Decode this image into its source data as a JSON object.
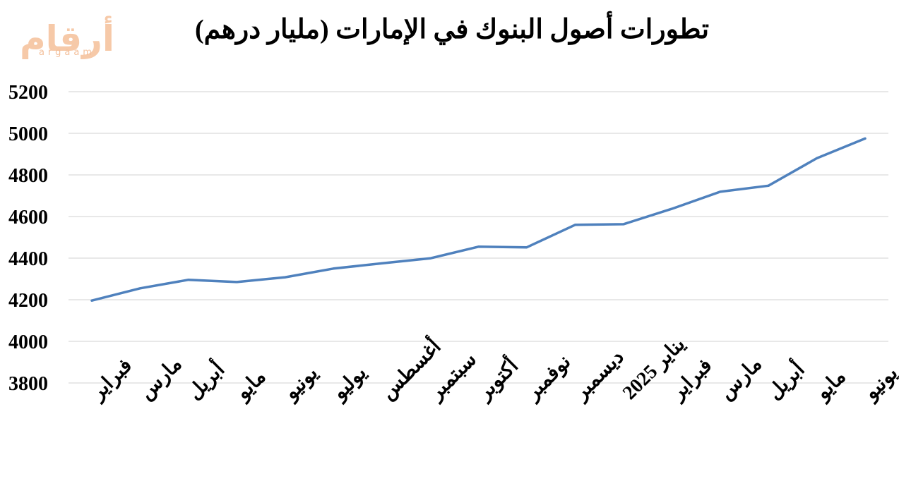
{
  "logo": {
    "arabic": "أرقام",
    "latin": "argaam"
  },
  "chart_data": {
    "type": "line",
    "title": "تطورات أصول البنوك في الإمارات (مليار درهم)",
    "xlabel": "",
    "ylabel": "",
    "categories": [
      "فبراير",
      "مارس",
      "أبريل",
      "مايو",
      "يونيو",
      "يوليو",
      "أغسطس",
      "سبتمبر",
      "أكتوبر",
      "نوفمبر",
      "ديسمبر",
      "يناير 2025",
      "فبراير",
      "مارس",
      "أبريل",
      "مايو",
      "يونيو"
    ],
    "series": [
      {
        "values": [
          4196,
          4255,
          4296,
          4285,
          4308,
          4350,
          4375,
          4399,
          4455,
          4452,
          4560,
          4563,
          4637,
          4719,
          4748,
          4880,
          4975
        ]
      }
    ],
    "ylim": [
      3800,
      5200
    ],
    "yticks": [
      3800,
      4000,
      4200,
      4400,
      4600,
      4800,
      5000,
      5200
    ],
    "grid": true,
    "legend": "none",
    "colors": {
      "series": "#4f81bd",
      "grid": "#d9d9d9",
      "logo": "#f6c9a8"
    }
  }
}
